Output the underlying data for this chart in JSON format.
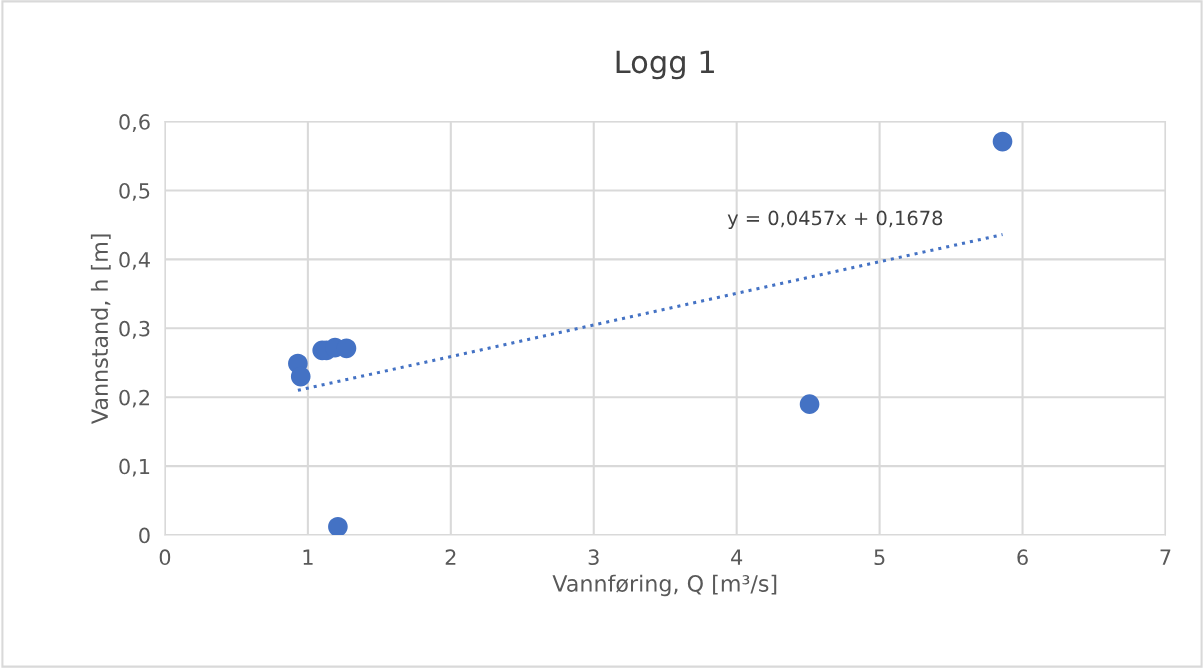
{
  "chart_data": {
    "type": "scatter",
    "title": "Logg 1",
    "xlabel": "Vannføring, Q [m³/s]",
    "ylabel": "Vannstand, h [m]",
    "series": [
      {
        "color": "#4472c4",
        "marker": "circle",
        "x": [
          0.93,
          0.95,
          1.1,
          1.13,
          1.19,
          1.27,
          1.21,
          4.51,
          5.86
        ],
        "values": [
          0.249,
          0.23,
          0.268,
          0.268,
          0.272,
          0.271,
          0.012,
          0.19,
          0.571
        ]
      },
      {
        "type": "line",
        "color": "#4472c4",
        "line_style": "dotted",
        "marker": "none",
        "x": [
          0.93,
          5.86
        ],
        "values": [
          0.21,
          0.436
        ]
      }
    ],
    "annotations": [
      "y = 0,0457x + 0,1678"
    ],
    "xlim": [
      0,
      7
    ],
    "xticks": [
      0,
      1,
      2,
      3,
      4,
      5,
      6,
      7
    ],
    "ylim": [
      0,
      0.6
    ],
    "yticks": [
      0,
      {
        "value": 0.1,
        "label": "0,1"
      },
      {
        "value": 0.2,
        "label": "0,2"
      },
      {
        "value": 0.3,
        "label": "0,3"
      },
      {
        "value": 0.4,
        "label": "0,4"
      },
      {
        "value": 0.5,
        "label": "0,5"
      },
      {
        "value": 0.6,
        "label": "0,6"
      }
    ],
    "grid": true,
    "legend": false
  }
}
